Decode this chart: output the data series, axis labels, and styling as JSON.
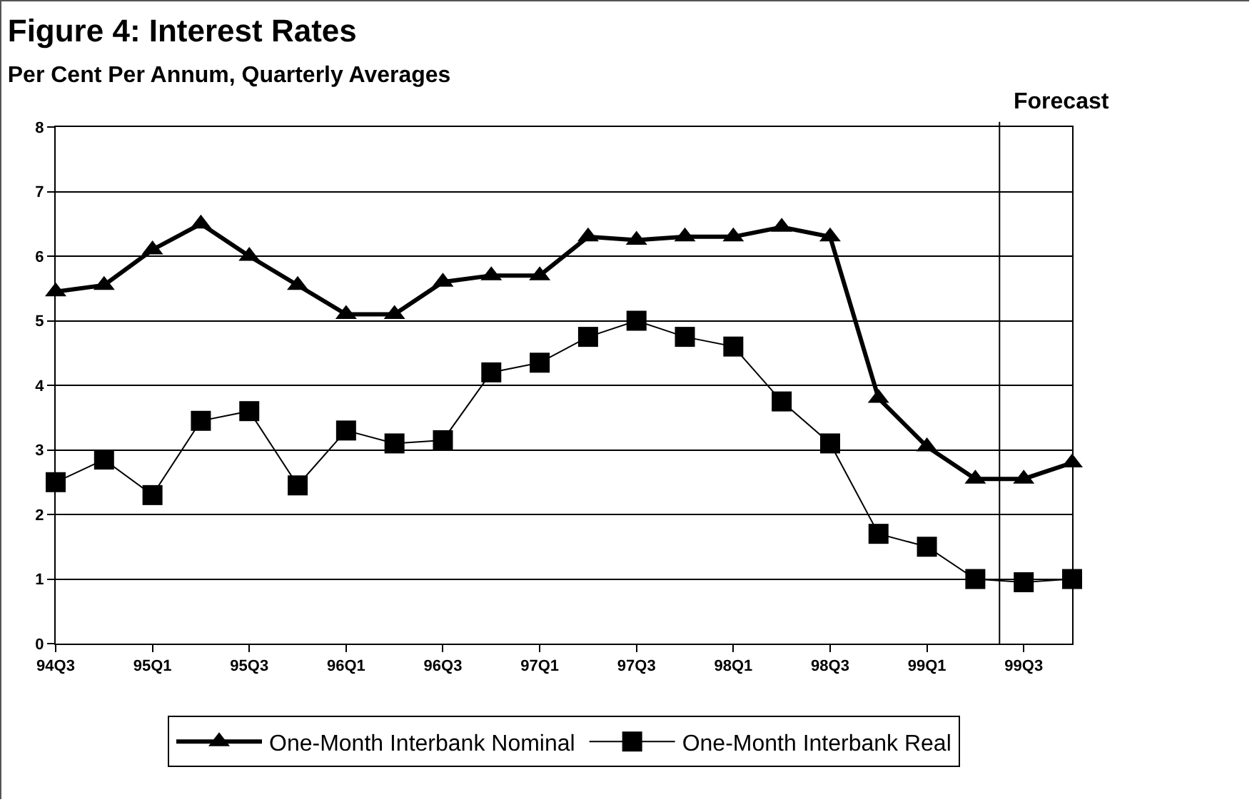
{
  "chart_data": {
    "type": "line",
    "title": "Figure 4: Interest Rates",
    "subtitle": "Per Cent Per Annum, Quarterly Averages",
    "categories": [
      "94Q3",
      null,
      "95Q1",
      null,
      "95Q3",
      null,
      "96Q1",
      null,
      "96Q3",
      null,
      "97Q1",
      null,
      "97Q3",
      null,
      "98Q1",
      null,
      "98Q3",
      null,
      "99Q1",
      null,
      "99Q3",
      null
    ],
    "series": [
      {
        "name": "One-Month Interbank Nominal",
        "color": "#000000",
        "marker": "triangle",
        "values": [
          5.45,
          5.55,
          6.1,
          6.5,
          6.0,
          5.55,
          5.1,
          5.1,
          5.6,
          5.7,
          5.7,
          6.3,
          6.25,
          6.3,
          6.3,
          6.45,
          6.3,
          3.8,
          3.05,
          2.55,
          2.55,
          2.8
        ]
      },
      {
        "name": "One-Month Interbank Real",
        "color": "#000000",
        "marker": "square",
        "values": [
          2.5,
          2.85,
          2.3,
          3.45,
          3.6,
          2.45,
          3.3,
          3.1,
          3.15,
          4.2,
          4.35,
          4.75,
          5.0,
          4.75,
          4.6,
          3.75,
          3.1,
          1.7,
          1.5,
          1.0,
          0.95,
          1.0
        ]
      }
    ],
    "ylim": [
      0,
      8
    ],
    "yticks": [
      0,
      1,
      2,
      3,
      4,
      5,
      6,
      7,
      8
    ],
    "grid": "y",
    "legend": "bottom",
    "annotations": [
      "Forecast"
    ]
  }
}
